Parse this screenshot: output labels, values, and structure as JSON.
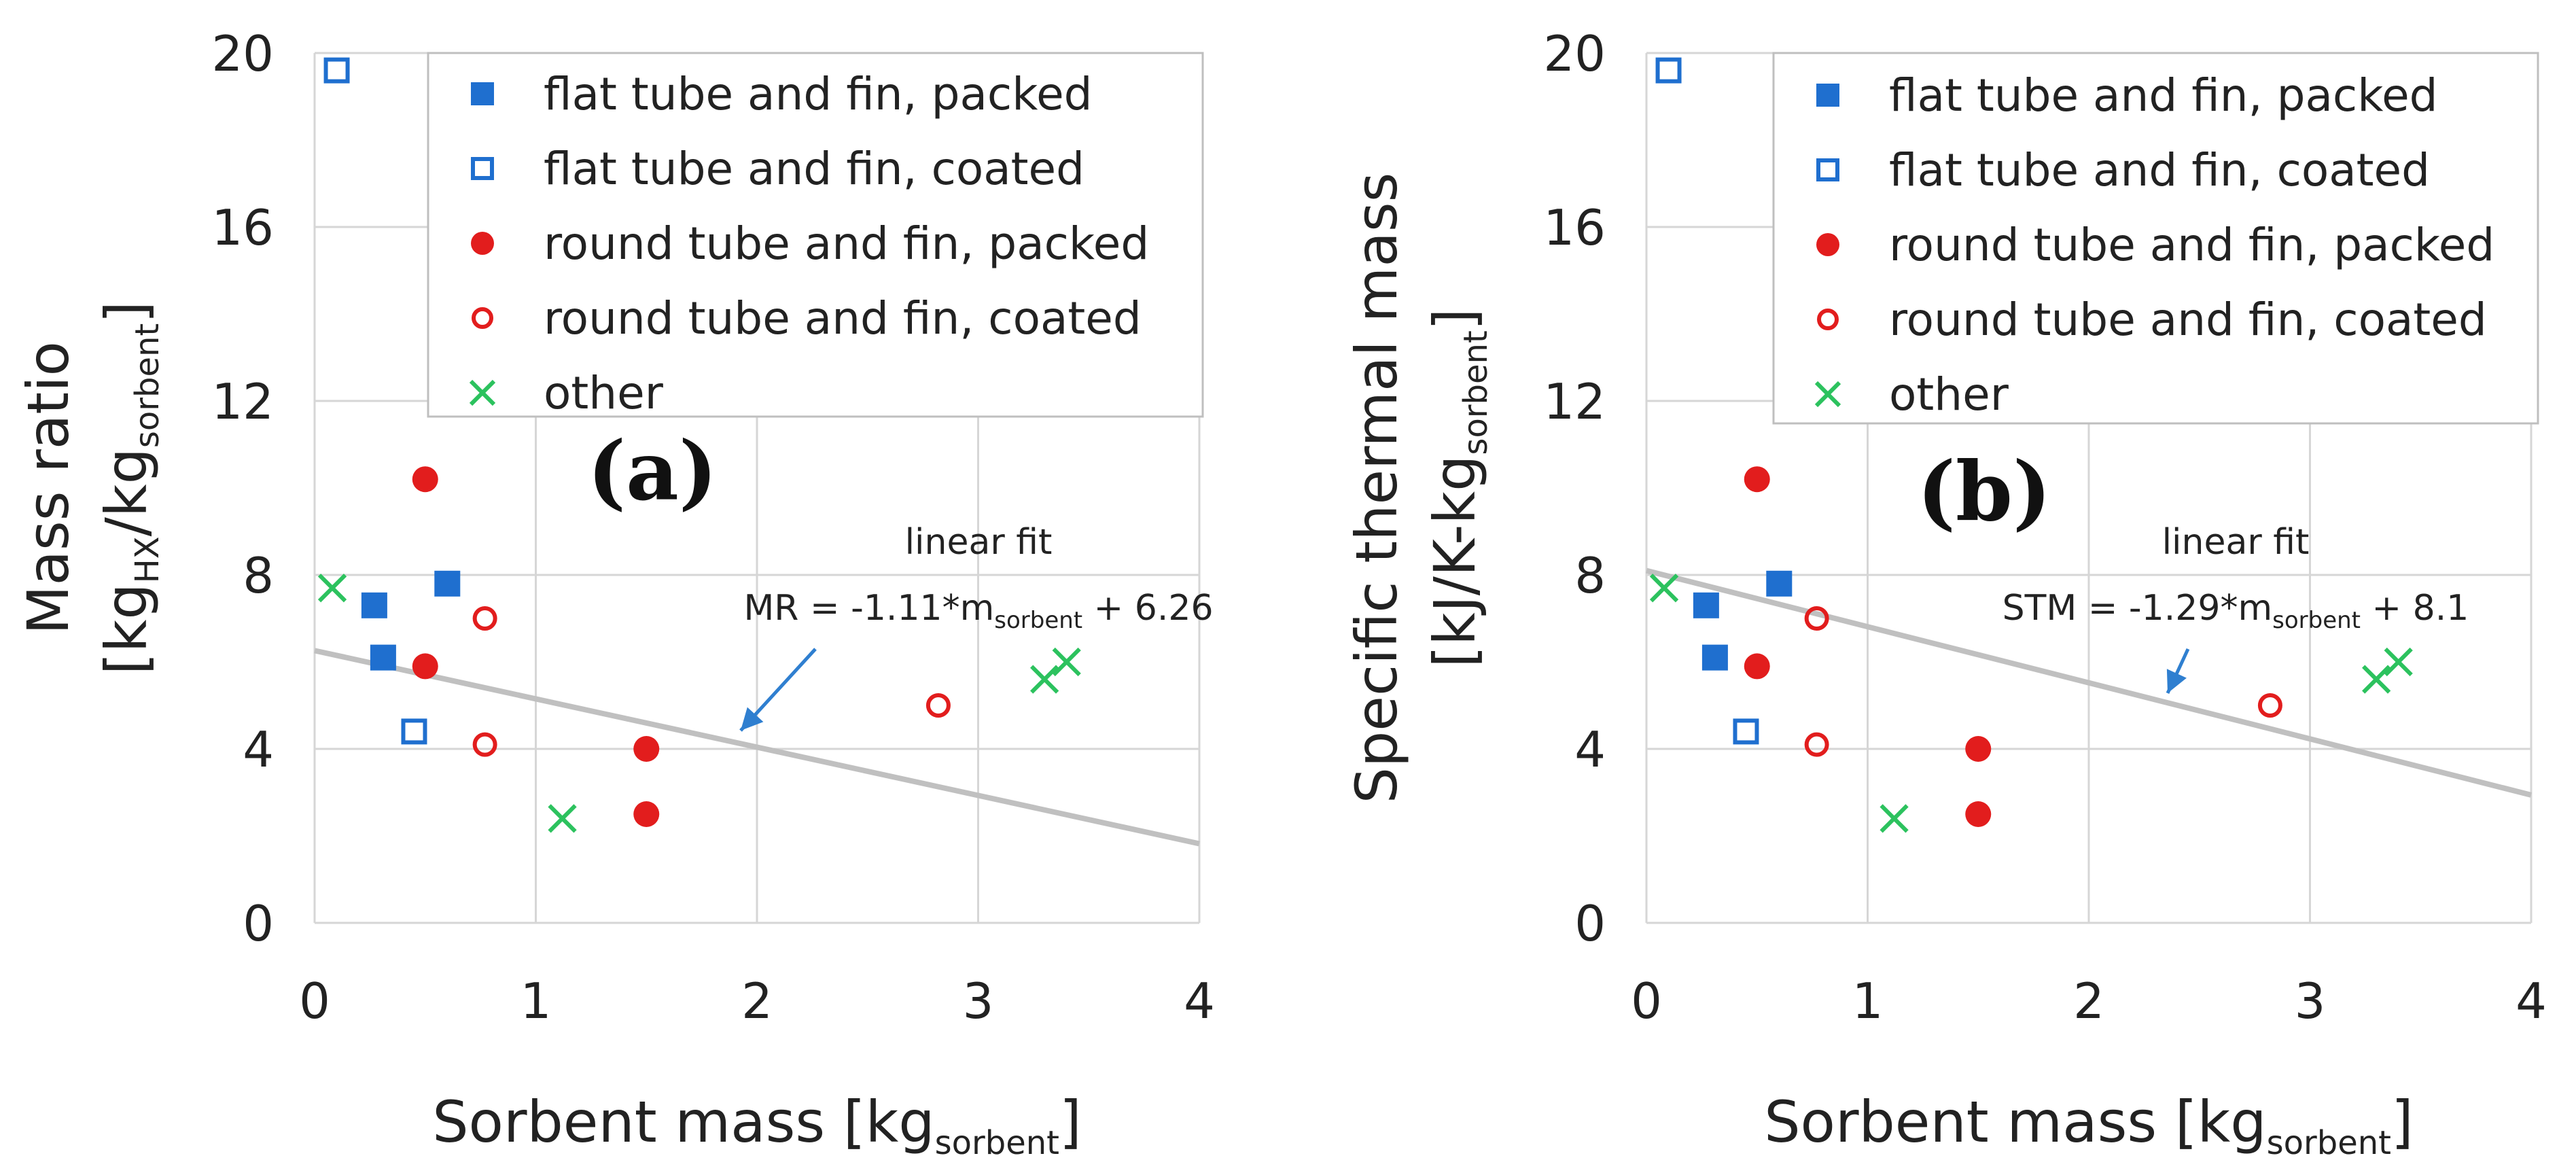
{
  "figure": {
    "panels": [
      "(a)",
      "(b)"
    ]
  },
  "chart_data": [
    {
      "type": "scatter",
      "panel_label": "(a)",
      "title": "",
      "xlabel": {
        "main": "Sorbent mass [kg",
        "sub": "sorbent",
        "end": "]"
      },
      "ylabel": {
        "line1": "Mass ratio",
        "line2_parts": [
          "[kg",
          "HX",
          "/kg",
          "sorbent",
          "]"
        ]
      },
      "xlim": [
        0,
        4
      ],
      "ylim": [
        0,
        20
      ],
      "xticks": [
        0,
        1,
        2,
        3,
        4
      ],
      "yticks": [
        0,
        4,
        8,
        12,
        16,
        20
      ],
      "grid": true,
      "legend_position": "top-right",
      "series": [
        {
          "name": "flat tube and fin, packed",
          "marker": "square-filled",
          "color": "#1f6fcf",
          "points": [
            [
              0.27,
              7.3
            ],
            [
              0.31,
              6.1
            ],
            [
              0.6,
              7.8
            ]
          ]
        },
        {
          "name": "flat tube and fin, coated",
          "marker": "square-open",
          "color": "#1f6fcf",
          "points": [
            [
              0.1,
              19.6
            ],
            [
              0.45,
              4.4
            ]
          ]
        },
        {
          "name": "round tube and fin, packed",
          "marker": "circle-filled",
          "color": "#e21d1d",
          "points": [
            [
              0.5,
              10.2
            ],
            [
              0.5,
              5.9
            ],
            [
              1.5,
              4.0
            ],
            [
              1.5,
              2.5
            ]
          ]
        },
        {
          "name": "round tube and fin, coated",
          "marker": "circle-open",
          "color": "#e21d1d",
          "points": [
            [
              0.77,
              7.0
            ],
            [
              0.77,
              4.1
            ],
            [
              2.82,
              5.0
            ]
          ]
        },
        {
          "name": "other",
          "marker": "x",
          "color": "#2cc25e",
          "points": [
            [
              0.08,
              7.7
            ],
            [
              1.12,
              2.4
            ],
            [
              3.3,
              5.6
            ],
            [
              3.4,
              6.0
            ]
          ]
        }
      ],
      "fit": {
        "slope": -1.11,
        "intercept": 6.26,
        "color": "#c0c0c0"
      },
      "annotation": {
        "title": "linear fit",
        "eq_prefix": "MR = -1.11*m",
        "eq_sub": "sorbent",
        "eq_suffix": " + 6.26",
        "arrow_color": "#2f7fd0"
      }
    },
    {
      "type": "scatter",
      "panel_label": "(b)",
      "title": "",
      "xlabel": {
        "main": "Sorbent mass [kg",
        "sub": "sorbent",
        "end": "]"
      },
      "ylabel": {
        "line1": "Specific thermal mass",
        "line2_parts": [
          "[kJ/K-kg",
          "sorbent",
          "]"
        ]
      },
      "xlim": [
        0,
        4
      ],
      "ylim": [
        0,
        20
      ],
      "xticks": [
        0,
        1,
        2,
        3,
        4
      ],
      "yticks": [
        0,
        4,
        8,
        12,
        16,
        20
      ],
      "grid": true,
      "legend_position": "top-right",
      "series": [
        {
          "name": "flat tube and fin, packed",
          "marker": "square-filled",
          "color": "#1f6fcf",
          "points": [
            [
              0.27,
              7.3
            ],
            [
              0.31,
              6.1
            ],
            [
              0.6,
              7.8
            ]
          ]
        },
        {
          "name": "flat tube and fin, coated",
          "marker": "square-open",
          "color": "#1f6fcf",
          "points": [
            [
              0.1,
              19.6
            ],
            [
              0.45,
              4.4
            ]
          ]
        },
        {
          "name": "round tube and fin, packed",
          "marker": "circle-filled",
          "color": "#e21d1d",
          "points": [
            [
              0.5,
              10.2
            ],
            [
              0.5,
              5.9
            ],
            [
              1.5,
              4.0
            ],
            [
              1.5,
              2.5
            ]
          ]
        },
        {
          "name": "round tube and fin, coated",
          "marker": "circle-open",
          "color": "#e21d1d",
          "points": [
            [
              0.77,
              7.0
            ],
            [
              0.77,
              4.1
            ],
            [
              2.82,
              5.0
            ]
          ]
        },
        {
          "name": "other",
          "marker": "x",
          "color": "#2cc25e",
          "points": [
            [
              0.08,
              7.7
            ],
            [
              1.12,
              2.4
            ],
            [
              3.3,
              5.6
            ],
            [
              3.4,
              6.0
            ]
          ]
        }
      ],
      "fit": {
        "slope": -1.29,
        "intercept": 8.1,
        "color": "#c0c0c0"
      },
      "annotation": {
        "title": "linear fit",
        "eq_prefix": "STM = -1.29*m",
        "eq_sub": "sorbent",
        "eq_suffix": " + 8.1",
        "arrow_color": "#2f7fd0"
      }
    }
  ]
}
